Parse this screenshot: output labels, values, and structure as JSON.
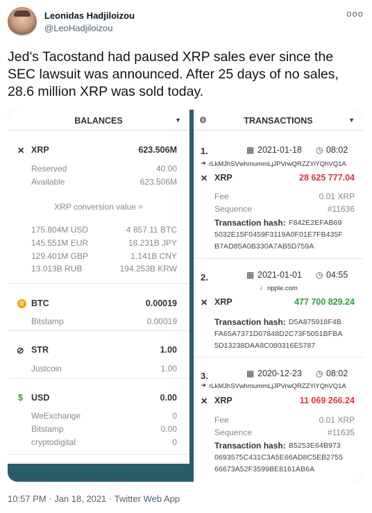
{
  "tweet": {
    "name": "Leonidas Hadjiloizou",
    "handle": "@LeoHadjiloizou",
    "more": "ooo",
    "text": "Jed's Tacostand had paused XRP sales ever since the SEC lawsuit was announced. After 25 days of no sales, 28.6 million XRP was sold today.",
    "footer": "10:57 PM · Jan 18, 2021 · Twitter Web App"
  },
  "balances": {
    "title": "BALANCES",
    "xrp": {
      "code": "XRP",
      "total": "623.506M",
      "reserved_label": "Reserved",
      "reserved": "40.00",
      "available_label": "Available",
      "available": "623.506M",
      "conv_label": "XRP conversion value ≈",
      "conv": [
        [
          "175.804M USD",
          "4 857.11 BTC"
        ],
        [
          "145.551M EUR",
          "18.231B JPY"
        ],
        [
          "129.401M GBP",
          "1.141B CNY"
        ],
        [
          "13.013B RUB",
          "194.253B KRW"
        ]
      ]
    },
    "btc": {
      "code": "BTC",
      "total": "0.00019",
      "sub_label": "Bitstamp",
      "sub_value": "0.00019"
    },
    "str": {
      "code": "STR",
      "total": "1.00",
      "sub_label": "Justcoin",
      "sub_value": "1.00"
    },
    "usd": {
      "code": "USD",
      "total": "0.00",
      "rows": [
        [
          "WeExchange",
          "0"
        ],
        [
          "Bitstamp",
          "0.00"
        ],
        [
          "cryptodigital",
          "0"
        ]
      ]
    }
  },
  "transactions": {
    "title": "TRANSACTIONS",
    "items": [
      {
        "index": "1.",
        "date": "2021-01-18",
        "time": "08:02",
        "addr": "rLkMJhSVwhmummLjJPVrwQRZZYiYQhVQ1A",
        "code": "XRP",
        "amount": "28 625 777.04",
        "fee_label": "Fee",
        "fee": "0.01 XRP",
        "seq_label": "Sequence",
        "seq": "#11636",
        "hash_label": "Transaction hash:",
        "hash1": "F842E2EFAB69",
        "hash2": "5032E15F0459F3119A0F01E7FB435F",
        "hash3": "B7AD85A0B330A7AB5D759A"
      },
      {
        "index": "2.",
        "date": "2021-01-01",
        "time": "04:55",
        "source": "ripple.com",
        "code": "XRP",
        "amount": "477 700 829.24",
        "hash_label": "Transaction hash:",
        "hash1": "D5A875918F4B",
        "hash2": "FA65A7371D07848D2C73F5051BFBA",
        "hash3": "5D13238DAA8C080316E5787"
      },
      {
        "index": "3.",
        "date": "2020-12-23",
        "time": "08:02",
        "addr": "rLkMJhSVwhmummLjJPVrwQRZZYiYQhVQ1A",
        "code": "XRP",
        "amount": "11 069 266.24",
        "fee_label": "Fee",
        "fee": "0.01 XRP",
        "seq_label": "Sequence",
        "seq": "#11635",
        "hash_label": "Transaction hash:",
        "hash1": "B5253E64B973",
        "hash2": "0693575C431C3A5E66AD8C5EB2755",
        "hash3": "66673A52F3599BE8161AB6A"
      }
    ]
  },
  "colors": {
    "negative": "#d9363e",
    "positive": "#2e9d3c",
    "btc": "#f2a20c",
    "bg_panel": "#2a5d6b"
  }
}
